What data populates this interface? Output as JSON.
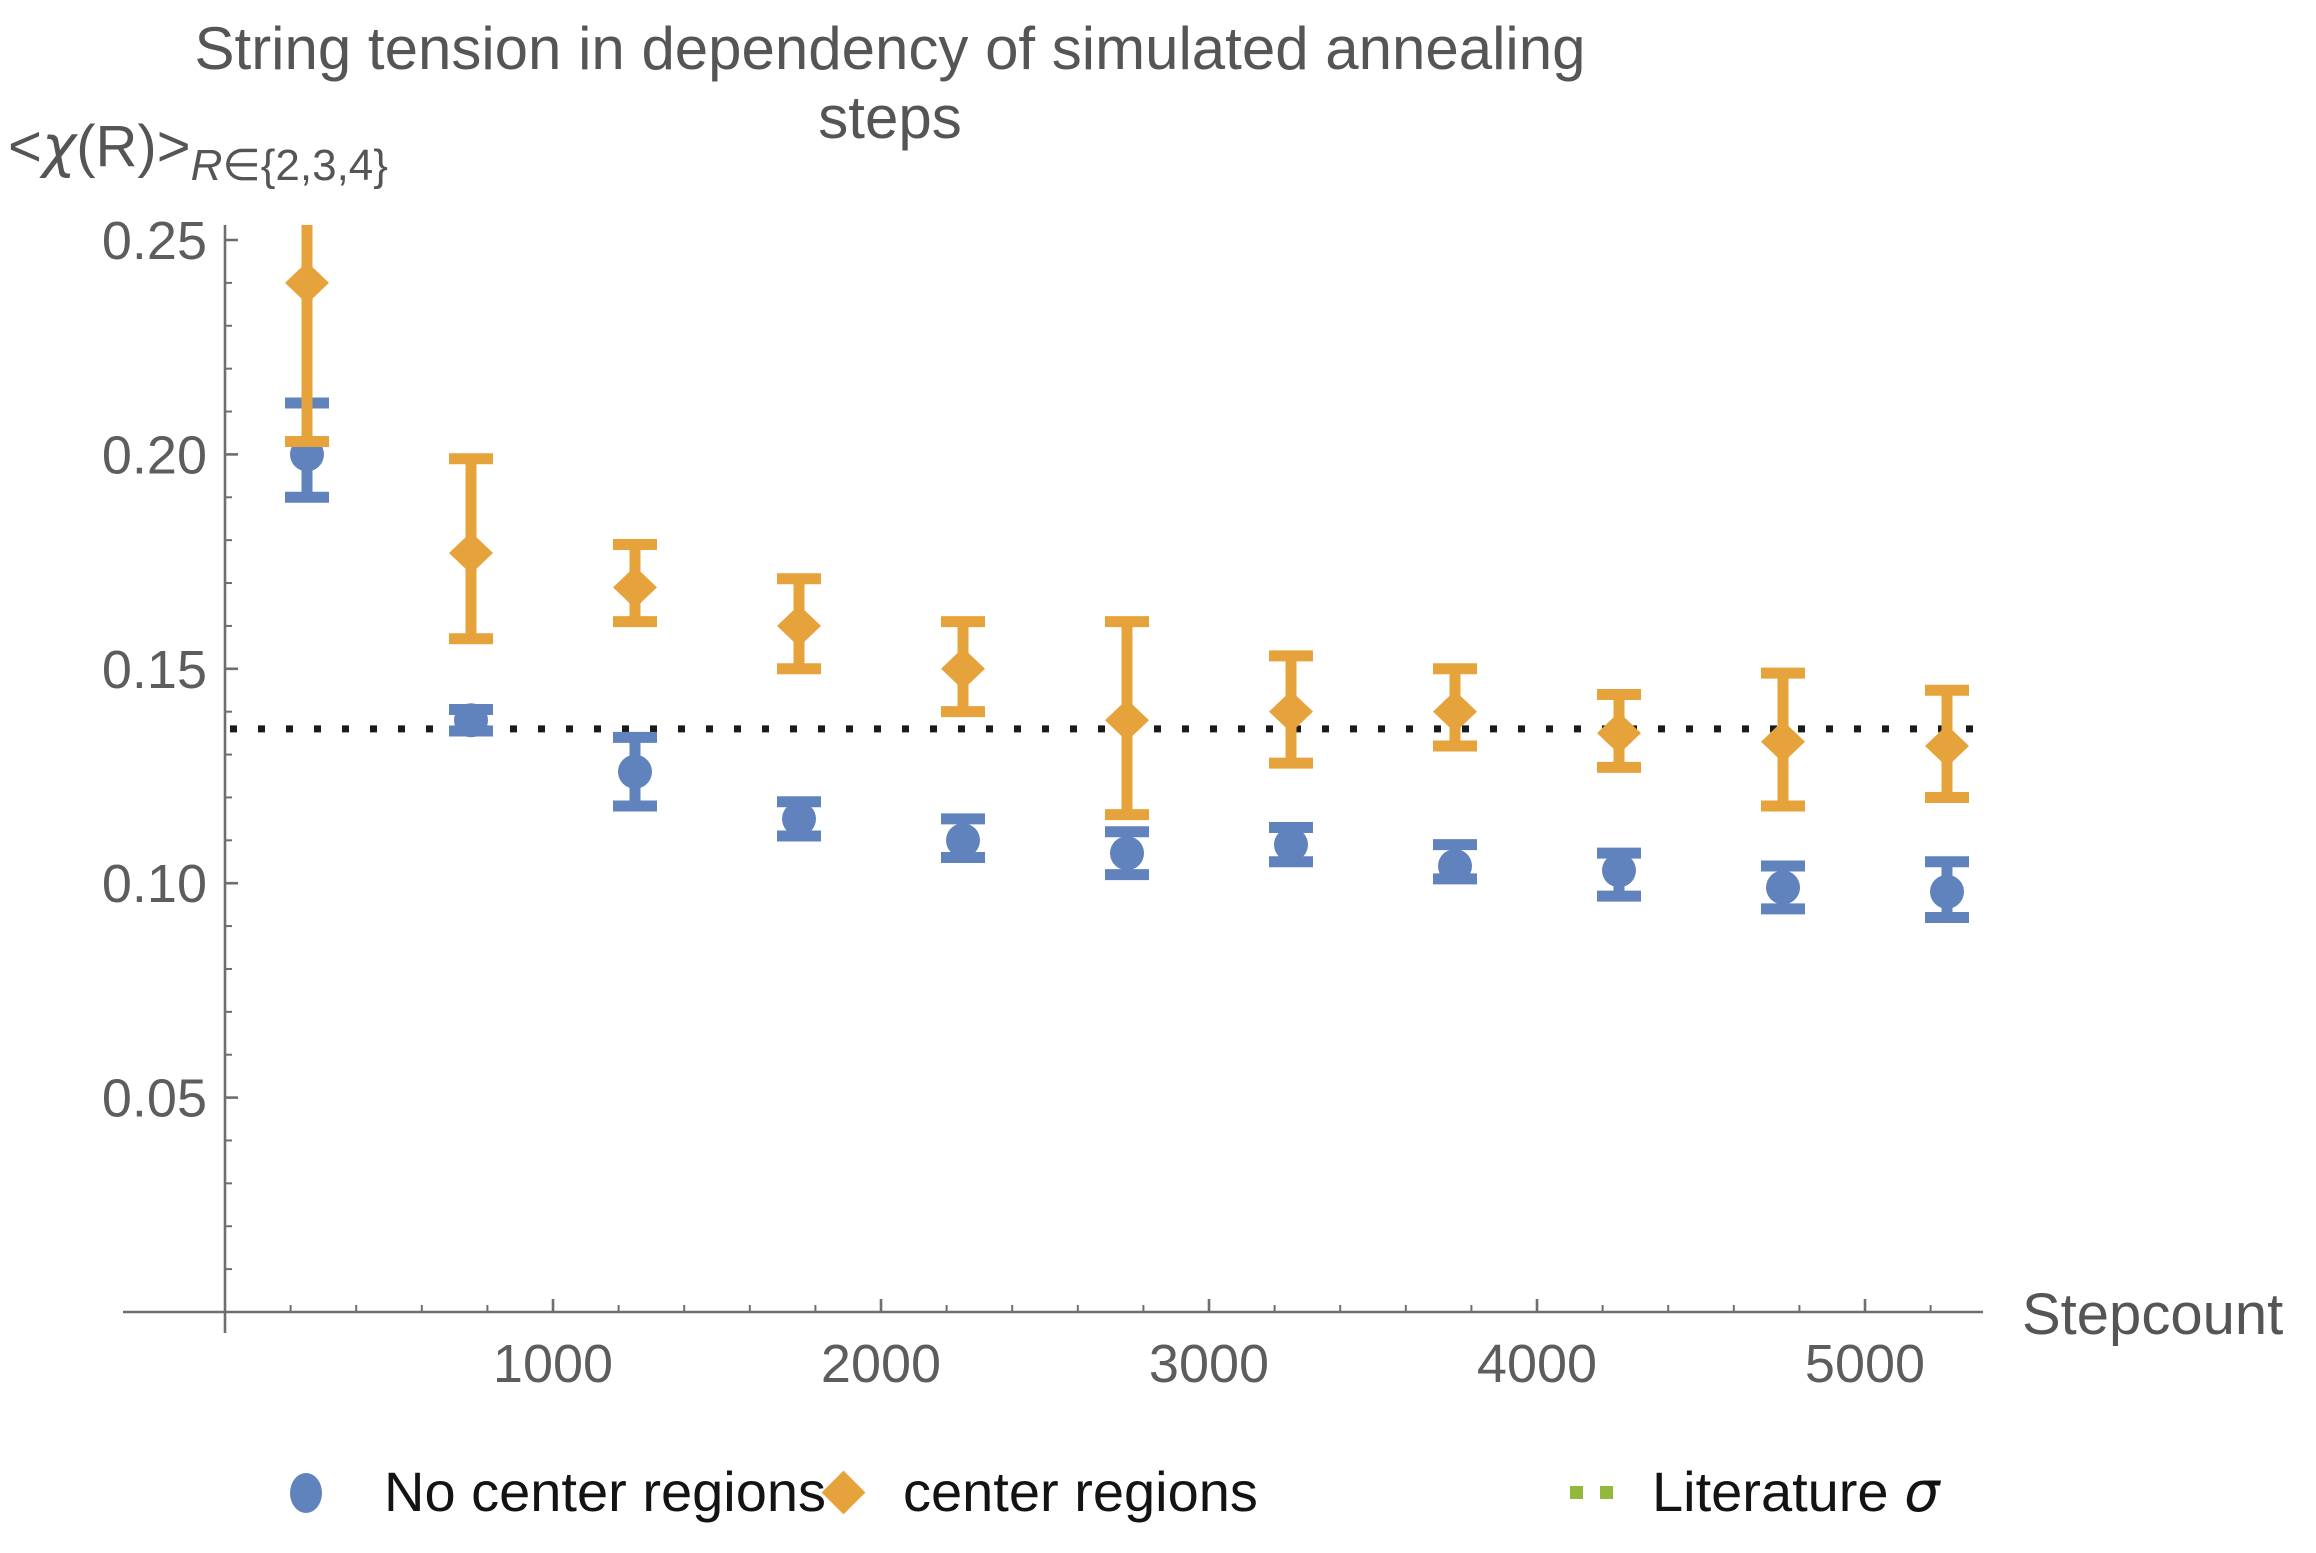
{
  "chart_data": {
    "type": "scatter",
    "title": "String tension in dependency of simulated annealing steps",
    "xlabel": "Stepcount",
    "ylabel_pre": "<",
    "ylabel_chi": "χ",
    "ylabel_main": "(R)>",
    "ylabel_sub": "R∈{2,3,4}",
    "xlim": [
      0,
      5360
    ],
    "ylim": [
      0,
      0.2535
    ],
    "grid": false,
    "legend_position": "below",
    "x_major_ticks": [
      {
        "v": 1000,
        "label": "1000"
      },
      {
        "v": 2000,
        "label": "2000"
      },
      {
        "v": 3000,
        "label": "3000"
      },
      {
        "v": 4000,
        "label": "4000"
      },
      {
        "v": 5000,
        "label": "5000"
      }
    ],
    "x_minor_step": 200,
    "y_major_ticks": [
      {
        "v": 0.05,
        "label": "0.05"
      },
      {
        "v": 0.1,
        "label": "0.10"
      },
      {
        "v": 0.15,
        "label": "0.15"
      },
      {
        "v": 0.2,
        "label": "0.20"
      },
      {
        "v": 0.25,
        "label": "0.25"
      }
    ],
    "y_minor_step": 0.01,
    "literature_sigma": {
      "value": 0.136,
      "color": "#1a1a1a",
      "style": "dotted"
    },
    "axis_color": "#6E6E6E",
    "tick_label_color": "#5D5D5D",
    "title_color": "#555555",
    "series": [
      {
        "name": "No center regions",
        "marker": "circle",
        "color": "#6083BD",
        "points": [
          {
            "x": 250,
            "y": 0.2,
            "lo": 0.19,
            "hi": 0.212
          },
          {
            "x": 750,
            "y": 0.138,
            "lo": 0.1355,
            "hi": 0.1405
          },
          {
            "x": 1250,
            "y": 0.126,
            "lo": 0.118,
            "hi": 0.134
          },
          {
            "x": 1750,
            "y": 0.115,
            "lo": 0.111,
            "hi": 0.119
          },
          {
            "x": 2250,
            "y": 0.11,
            "lo": 0.106,
            "hi": 0.115
          },
          {
            "x": 2750,
            "y": 0.107,
            "lo": 0.102,
            "hi": 0.112
          },
          {
            "x": 3250,
            "y": 0.109,
            "lo": 0.105,
            "hi": 0.113
          },
          {
            "x": 3750,
            "y": 0.104,
            "lo": 0.101,
            "hi": 0.109
          },
          {
            "x": 4250,
            "y": 0.103,
            "lo": 0.097,
            "hi": 0.107
          },
          {
            "x": 4750,
            "y": 0.099,
            "lo": 0.094,
            "hi": 0.104
          },
          {
            "x": 5250,
            "y": 0.098,
            "lo": 0.092,
            "hi": 0.105
          }
        ]
      },
      {
        "name": "center regions",
        "marker": "diamond",
        "color": "#E7A33B",
        "points": [
          {
            "x": 250,
            "y": 0.24,
            "lo": 0.203,
            "hi": 0.2535,
            "clipped_top": true
          },
          {
            "x": 750,
            "y": 0.177,
            "lo": 0.157,
            "hi": 0.199
          },
          {
            "x": 1250,
            "y": 0.169,
            "lo": 0.161,
            "hi": 0.179
          },
          {
            "x": 1750,
            "y": 0.16,
            "lo": 0.15,
            "hi": 0.171
          },
          {
            "x": 2250,
            "y": 0.15,
            "lo": 0.14,
            "hi": 0.161
          },
          {
            "x": 2750,
            "y": 0.138,
            "lo": 0.116,
            "hi": 0.161
          },
          {
            "x": 3250,
            "y": 0.14,
            "lo": 0.128,
            "hi": 0.153
          },
          {
            "x": 3750,
            "y": 0.14,
            "lo": 0.132,
            "hi": 0.15
          },
          {
            "x": 4250,
            "y": 0.135,
            "lo": 0.127,
            "hi": 0.144
          },
          {
            "x": 4750,
            "y": 0.133,
            "lo": 0.118,
            "hi": 0.149
          },
          {
            "x": 5250,
            "y": 0.132,
            "lo": 0.12,
            "hi": 0.145
          }
        ]
      }
    ]
  },
  "legend": {
    "items": [
      {
        "label": "No center regions",
        "marker": "circle",
        "color": "#6083BD"
      },
      {
        "label": "center regions",
        "marker": "diamond",
        "color": "#E7A33B"
      },
      {
        "label": "Literature",
        "symbol": "σ",
        "marker": "dotted-line",
        "color": "#94B83C"
      }
    ]
  }
}
